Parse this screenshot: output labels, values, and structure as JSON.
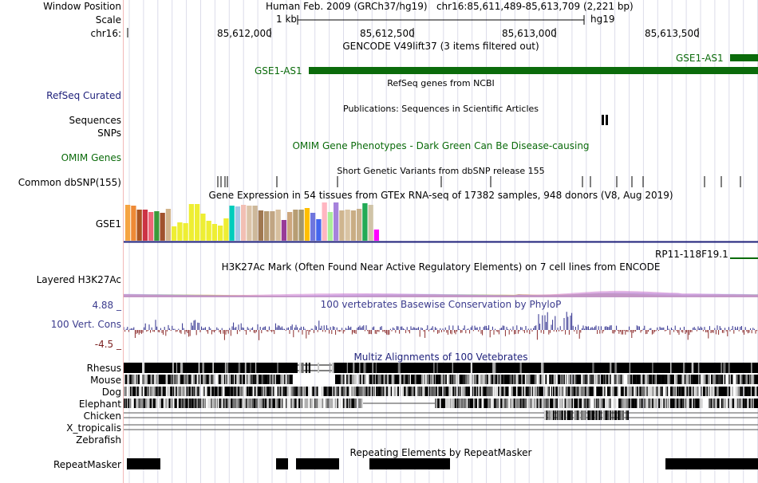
{
  "header": {
    "window_position_label": "Window Position",
    "window_position_value": "Human Feb. 2009 (GRCh37/hg19)   chr16:85,611,489-85,613,709 (2,221 bp)",
    "scale_label": "Scale",
    "scale_value": "1 kb",
    "assembly": "hg19",
    "chrom_label": "chr16:",
    "ruler_ticks": [
      "85,612,000",
      "85,612,500",
      "85,613,000",
      "85,613,500"
    ]
  },
  "tracks": {
    "gencode": {
      "title": "GENCODE V49lift37 (3 items filtered out)",
      "gene_left": "GSE1-AS1",
      "gene_right": "GSE1-AS1",
      "color": "#0b6b0b"
    },
    "refseq": {
      "label": "RefSeq Curated",
      "title": "RefSeq genes from NCBI"
    },
    "publications": {
      "title": "Publications: Sequences in Scientific Articles"
    },
    "sequences": {
      "label": "Sequences"
    },
    "snps": {
      "label": "SNPs"
    },
    "omim": {
      "label": "OMIM Genes",
      "title": "OMIM Gene Phenotypes - Dark Green Can Be Disease-causing"
    },
    "dbsnp": {
      "label": "Common dbSNP(155)",
      "title": "Short Genetic Variants from dbSNP release 155"
    },
    "gtex": {
      "title": "Gene Expression in 54 tissues from GTEx RNA-seq of 17382 samples, 948 donors (V8, Aug 2019)",
      "gene_label": "GSE1",
      "bar_colors": [
        "#f5a442",
        "#ee8a36",
        "#aa5522",
        "#cc3344",
        "#ee6677",
        "#3a9a3a",
        "#a0522d",
        "#d2b48c",
        "#eeee33",
        "#eeee33",
        "#eeee33",
        "#eeee33",
        "#eeee33",
        "#eeee33",
        "#eeee33",
        "#eeee33",
        "#eeee33",
        "#eeee33",
        "#00ccbb",
        "#a4c7e6",
        "#f2bfb4",
        "#dbc4a8",
        "#cdb89a",
        "#a07850",
        "#b69a72",
        "#c1a583",
        "#d7bf9e",
        "#983b98",
        "#cda77e",
        "#b79d73",
        "#a3966b",
        "#ffbf00",
        "#6f76dd",
        "#4466ee",
        "#ffb6c1",
        "#aaee99",
        "#a682dc",
        "#cfb58f",
        "#d9c4a4",
        "#c9ad84",
        "#c8b08c",
        "#22aa55",
        "#d0c4a8",
        "#ff00ff"
      ],
      "bar_values": [
        45,
        44,
        39,
        39,
        36,
        37,
        35,
        40,
        18,
        23,
        22,
        46,
        46,
        34,
        25,
        21,
        19,
        28,
        44,
        43,
        45,
        44,
        44,
        38,
        37,
        37,
        39,
        26,
        36,
        39,
        39,
        41,
        35,
        27,
        49,
        36,
        50,
        38,
        39,
        38,
        40,
        47,
        45,
        14
      ]
    },
    "rp11": {
      "label": "RP11-118F19.1"
    },
    "h3k27ac": {
      "label": "Layered H3K27Ac",
      "title": "H3K27Ac Mark (Often Found Near Active Regulatory Elements) on 7 cell lines from ENCODE"
    },
    "conservation": {
      "label": "100 Vert. Cons",
      "title": "100 vertebrates Basewise Conservation by PhyloP",
      "max": "4.88 _",
      "min": "-4.5 _",
      "pos_color": "#2c2c8c",
      "neg_color": "#8c2c2c"
    },
    "multiz": {
      "title": "Multiz Alignments of 100 Vetebrates",
      "species": [
        {
          "name": "Rhesus",
          "color": "#1d1f7a"
        },
        {
          "name": "Mouse",
          "color": "#1d1f7a"
        },
        {
          "name": "Dog",
          "color": "#1d1f7a"
        },
        {
          "name": "Elephant",
          "color": "#1d1f7a"
        },
        {
          "name": "Chicken",
          "color": "#0b6b0b"
        },
        {
          "name": "X_tropicalis",
          "color": "#1d1f7a"
        },
        {
          "name": "Zebrafish",
          "color": "#0b6b0b"
        }
      ]
    },
    "repeatmasker": {
      "label": "RepeatMasker",
      "title": "Repeating Elements by RepeatMasker"
    }
  }
}
